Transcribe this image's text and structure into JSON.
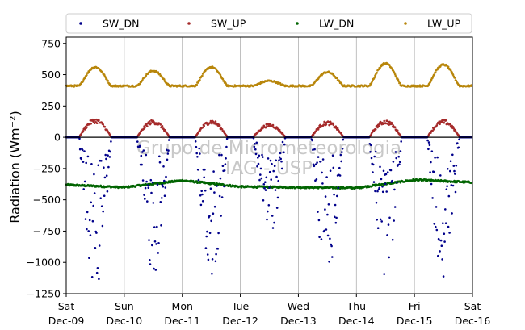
{
  "chart_data": {
    "type": "scatter",
    "title": "",
    "xlabel": "",
    "ylabel": "Radiation (Wm⁻²)",
    "ylim": [
      -1250,
      800
    ],
    "yticks": [
      -1250,
      -1000,
      -750,
      -500,
      -250,
      0,
      250,
      500,
      750
    ],
    "ytick_labels": [
      "−1250",
      "−1000",
      "−750",
      "−500",
      "−250",
      "0",
      "250",
      "500",
      "750"
    ],
    "xlim": [
      "2017-12-09",
      "2017-12-16"
    ],
    "xticks": [
      {
        "day": "Sat",
        "date": "Dec-09"
      },
      {
        "day": "Sun",
        "date": "Dec-10"
      },
      {
        "day": "Mon",
        "date": "Dec-11"
      },
      {
        "day": "Tue",
        "date": "Dec-12"
      },
      {
        "day": "Wed",
        "date": "Dec-13"
      },
      {
        "day": "Thu",
        "date": "Dec-14"
      },
      {
        "day": "Fri",
        "date": "Dec-15"
      },
      {
        "day": "Sat",
        "date": "Dec-16"
      }
    ],
    "grid": "vertical",
    "zero_line": true,
    "legend_placement": "top",
    "watermark": [
      "Grupo de Micrometeorologia",
      "IAG - USP"
    ],
    "series": [
      {
        "name": "SW_DN",
        "color": "#00008b",
        "daily_min": [
          -1220,
          -1110,
          -1190,
          -780,
          -1110,
          -1200,
          -1120
        ],
        "night_value": 0
      },
      {
        "name": "SW_UP",
        "color": "#a52a2a",
        "daily_max": [
          150,
          140,
          140,
          110,
          130,
          140,
          140
        ],
        "night_value": 5
      },
      {
        "name": "LW_DN",
        "color": "#006400",
        "daily_values": [
          -380,
          -400,
          -345,
          -395,
          -400,
          -405,
          -340,
          -360
        ]
      },
      {
        "name": "LW_UP",
        "color": "#b8860b",
        "daily_peak": [
          560,
          530,
          560,
          450,
          520,
          590,
          580
        ],
        "night_value": 410
      }
    ]
  }
}
